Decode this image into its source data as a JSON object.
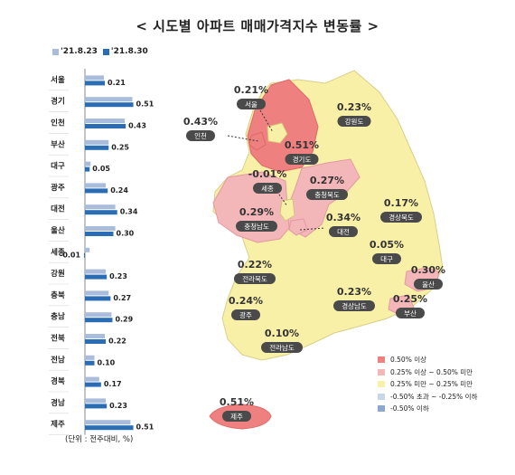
{
  "title": "< 시도별 아파트 매매가격지수 변동률 >",
  "unit_note": "(단위 : 전주대비, %)",
  "colors": {
    "prev": "#a9bcdb",
    "curr": "#2a6db5",
    "map_high": "#ee8080",
    "map_mid": "#f3b6b9",
    "map_low": "#f9f0a8",
    "map_neg": "#c9d6ea",
    "map_neg2": "#8ea7cf",
    "pill": "#4a4a4a"
  },
  "chart_data": {
    "type": "bar",
    "orientation": "horizontal",
    "categories": [
      "서울",
      "경기",
      "인천",
      "부산",
      "대구",
      "광주",
      "대전",
      "울산",
      "세종",
      "강원",
      "충북",
      "충남",
      "전북",
      "전남",
      "경북",
      "경남",
      "제주"
    ],
    "series": [
      {
        "name": "'21.8.23",
        "values": [
          0.2,
          0.5,
          0.42,
          0.25,
          0.06,
          0.22,
          0.32,
          0.32,
          0.05,
          0.22,
          0.25,
          0.28,
          0.21,
          0.1,
          0.15,
          0.22,
          0.48
        ]
      },
      {
        "name": "'21.8.30",
        "values": [
          0.21,
          0.51,
          0.43,
          0.25,
          0.05,
          0.24,
          0.34,
          0.3,
          -0.01,
          0.23,
          0.27,
          0.29,
          0.22,
          0.1,
          0.17,
          0.23,
          0.51
        ]
      }
    ],
    "labels": [
      "0.21",
      "0.51",
      "0.43",
      "0.25",
      "0.05",
      "0.24",
      "0.34",
      "0.30",
      "-0.01",
      "0.23",
      "0.27",
      "0.29",
      "0.22",
      "0.10",
      "0.17",
      "0.23",
      "0.51"
    ],
    "xlim": [
      -0.05,
      0.55
    ]
  },
  "map": {
    "regions": [
      {
        "name": "서울",
        "value": "0.21%"
      },
      {
        "name": "인천",
        "value": "0.43%"
      },
      {
        "name": "경기도",
        "value": "0.51%"
      },
      {
        "name": "강원도",
        "value": "0.23%"
      },
      {
        "name": "세종",
        "value": "-0.01%"
      },
      {
        "name": "충청북도",
        "value": "0.27%"
      },
      {
        "name": "충청남도",
        "value": "0.29%"
      },
      {
        "name": "대전",
        "value": "0.34%"
      },
      {
        "name": "경상북도",
        "value": "0.17%"
      },
      {
        "name": "대구",
        "value": "0.05%"
      },
      {
        "name": "전라북도",
        "value": "0.22%"
      },
      {
        "name": "울산",
        "value": "0.30%"
      },
      {
        "name": "광주",
        "value": "0.24%"
      },
      {
        "name": "경상남도",
        "value": "0.23%"
      },
      {
        "name": "부산",
        "value": "0.25%"
      },
      {
        "name": "전라남도",
        "value": "0.10%"
      },
      {
        "name": "제주",
        "value": "0.51%"
      }
    ],
    "legend": [
      "0.50% 이상",
      "0.25% 이상 ~ 0.50% 미만",
      "0.25% 미만 ~ 0.25% 미만",
      "-0.50% 초과 ~ -0.25% 이하",
      "-0.50% 이하"
    ]
  }
}
